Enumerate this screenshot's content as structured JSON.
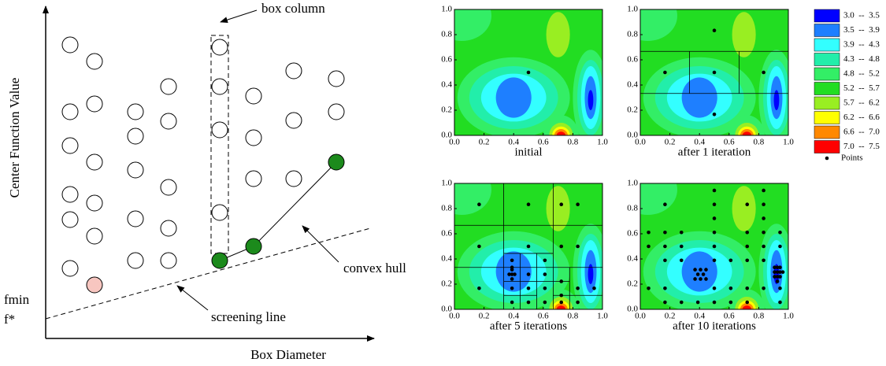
{
  "diagram": {
    "y_axis_label": "Center Function Value",
    "x_axis_label": "Box Diameter",
    "box_column": "box column",
    "convex_hull": "convex hull",
    "screening_line": "screening line",
    "fmin": "fmin",
    "fstar": "f*"
  },
  "legend": {
    "entries": [
      {
        "label": "3.0  --  3.5",
        "color": "#0000ff"
      },
      {
        "label": "3.5  --  3.9",
        "color": "#1e7fff"
      },
      {
        "label": "3.9  --  4.3",
        "color": "#33ffff"
      },
      {
        "label": "4.3  --  4.8",
        "color": "#22eeaa"
      },
      {
        "label": "4.8  --  5.2",
        "color": "#33ee66"
      },
      {
        "label": "5.2  --  5.7",
        "color": "#22dd22"
      },
      {
        "label": "5.7  --  6.2",
        "color": "#99ee22"
      },
      {
        "label": "6.2  --  6.6",
        "color": "#ffff00"
      },
      {
        "label": "6.6  --  7.0",
        "color": "#ff8800"
      },
      {
        "label": "7.0  --  7.5",
        "color": "#ff0000"
      }
    ],
    "points_label": "Points"
  },
  "chart_data": [
    {
      "type": "scatter",
      "title": "initial",
      "xlim": [
        0,
        1
      ],
      "ylim": [
        0,
        1
      ],
      "xticks": [
        {
          "value": 0,
          "label": "0.0"
        },
        {
          "value": 0.2,
          "label": "0.2"
        },
        {
          "value": 0.4,
          "label": "0.4"
        },
        {
          "value": 0.6,
          "label": "0.6"
        },
        {
          "value": 0.8,
          "label": "0.8"
        },
        {
          "value": 1,
          "label": "1.0"
        }
      ],
      "yticks": [
        {
          "value": 0,
          "label": "0.0"
        },
        {
          "value": 0.2,
          "label": "0.2"
        },
        {
          "value": 0.4,
          "label": "0.4"
        },
        {
          "value": 0.6,
          "label": "0.6"
        },
        {
          "value": 0.8,
          "label": "0.8"
        },
        {
          "value": 1,
          "label": "1.0"
        }
      ],
      "x": [
        0.5
      ],
      "y": [
        0.5
      ],
      "boxes": []
    },
    {
      "type": "scatter",
      "title": "after 1 iteration",
      "xlim": [
        0,
        1
      ],
      "ylim": [
        0,
        1
      ],
      "xticks": [
        {
          "value": 0,
          "label": "0.0"
        },
        {
          "value": 0.2,
          "label": "0.2"
        },
        {
          "value": 0.4,
          "label": "0.4"
        },
        {
          "value": 0.6,
          "label": "0.6"
        },
        {
          "value": 0.8,
          "label": "0.8"
        },
        {
          "value": 1,
          "label": "1.0"
        }
      ],
      "yticks": [
        {
          "value": 0,
          "label": "0.0"
        },
        {
          "value": 0.2,
          "label": "0.2"
        },
        {
          "value": 0.4,
          "label": "0.4"
        },
        {
          "value": 0.6,
          "label": "0.6"
        },
        {
          "value": 0.8,
          "label": "0.8"
        },
        {
          "value": 1,
          "label": "1.0"
        }
      ],
      "x": [
        0.5,
        0.167,
        0.833,
        0.5,
        0.5
      ],
      "y": [
        0.5,
        0.5,
        0.5,
        0.833,
        0.167
      ],
      "boxes": [
        [
          0,
          0.333,
          1,
          0.333
        ],
        [
          0,
          0.667,
          1,
          0.667
        ],
        [
          0.333,
          0.333,
          0.333,
          0.667
        ],
        [
          0.667,
          0.333,
          0.667,
          0.667
        ]
      ]
    },
    {
      "type": "scatter",
      "title": "after 5 iterations",
      "xlim": [
        0,
        1
      ],
      "ylim": [
        0,
        1
      ],
      "xticks": [
        {
          "value": 0,
          "label": "0.0"
        },
        {
          "value": 0.2,
          "label": "0.2"
        },
        {
          "value": 0.4,
          "label": "0.4"
        },
        {
          "value": 0.6,
          "label": "0.6"
        },
        {
          "value": 0.8,
          "label": "0.8"
        },
        {
          "value": 1,
          "label": "1.0"
        }
      ],
      "yticks": [
        {
          "value": 0,
          "label": "0.0"
        },
        {
          "value": 0.2,
          "label": "0.2"
        },
        {
          "value": 0.4,
          "label": "0.4"
        },
        {
          "value": 0.6,
          "label": "0.6"
        },
        {
          "value": 0.8,
          "label": "0.8"
        },
        {
          "value": 1,
          "label": "1.0"
        }
      ],
      "x": [
        0.167,
        0.5,
        0.722,
        0.833,
        0.167,
        0.5,
        0.722,
        0.833,
        0.389,
        0.611,
        0.389,
        0.5,
        0.611,
        0.37,
        0.389,
        0.407,
        0.389,
        0.389,
        0.167,
        0.5,
        0.611,
        0.722,
        0.833,
        0.389,
        0.5,
        0.722,
        0.944,
        0.389,
        0.611,
        0.722,
        0.833
      ],
      "y": [
        0.833,
        0.833,
        0.833,
        0.833,
        0.5,
        0.5,
        0.5,
        0.5,
        0.389,
        0.389,
        0.333,
        0.278,
        0.278,
        0.278,
        0.278,
        0.278,
        0.241,
        0.315,
        0.167,
        0.167,
        0.167,
        0.222,
        0.167,
        0.167,
        0.056,
        0.111,
        0.167,
        0.056,
        0.056,
        0.056,
        0.056
      ],
      "boxes": [
        [
          0,
          0.333,
          1,
          0.333
        ],
        [
          0,
          0.667,
          1,
          0.667
        ],
        [
          0.333,
          0,
          0.333,
          1
        ],
        [
          0.667,
          0,
          0.667,
          1
        ],
        [
          0.333,
          0.444,
          0.667,
          0.444
        ],
        [
          0.333,
          0.222,
          0.667,
          0.222
        ],
        [
          0.444,
          0,
          0.444,
          0.444
        ],
        [
          0.556,
          0,
          0.556,
          0.444
        ],
        [
          0.333,
          0.111,
          0.556,
          0.111
        ],
        [
          0.778,
          0,
          0.778,
          0.333
        ],
        [
          0.667,
          0.111,
          1,
          0.111
        ],
        [
          0.667,
          0.222,
          0.778,
          0.222
        ]
      ]
    },
    {
      "type": "scatter",
      "title": "after 10 iterations",
      "xlim": [
        0,
        1
      ],
      "ylim": [
        0,
        1
      ],
      "xticks": [
        {
          "value": 0,
          "label": "0.0"
        },
        {
          "value": 0.2,
          "label": "0.2"
        },
        {
          "value": 0.4,
          "label": "0.4"
        },
        {
          "value": 0.6,
          "label": "0.6"
        },
        {
          "value": 0.8,
          "label": "0.8"
        },
        {
          "value": 1,
          "label": "1.0"
        }
      ],
      "yticks": [
        {
          "value": 0,
          "label": "0.0"
        },
        {
          "value": 0.2,
          "label": "0.2"
        },
        {
          "value": 0.4,
          "label": "0.4"
        },
        {
          "value": 0.6,
          "label": "0.6"
        },
        {
          "value": 0.8,
          "label": "0.8"
        },
        {
          "value": 1,
          "label": "1.0"
        }
      ],
      "x": [
        0.5,
        0.833,
        0.167,
        0.5,
        0.722,
        0.833,
        0.5,
        0.833,
        0.056,
        0.167,
        0.278,
        0.5,
        0.722,
        0.833,
        0.944,
        0.056,
        0.167,
        0.278,
        0.5,
        0.722,
        0.833,
        0.944,
        0.167,
        0.278,
        0.5,
        0.611,
        0.722,
        0.833,
        0.37,
        0.407,
        0.444,
        0.389,
        0.426,
        0.37,
        0.407,
        0.444,
        0.907,
        0.926,
        0.944,
        0.907,
        0.926,
        0.944,
        0.963,
        0.907,
        0.926,
        0.944,
        0.926,
        0.056,
        0.167,
        0.5,
        0.611,
        0.722,
        0.833,
        0.944,
        0.167,
        0.278,
        0.389,
        0.5,
        0.611,
        0.722,
        0.944
      ],
      "y": [
        0.944,
        0.944,
        0.833,
        0.833,
        0.833,
        0.833,
        0.722,
        0.722,
        0.611,
        0.611,
        0.611,
        0.611,
        0.611,
        0.611,
        0.611,
        0.5,
        0.5,
        0.5,
        0.5,
        0.5,
        0.5,
        0.5,
        0.389,
        0.389,
        0.389,
        0.389,
        0.389,
        0.389,
        0.315,
        0.315,
        0.315,
        0.278,
        0.278,
        0.241,
        0.241,
        0.241,
        0.333,
        0.333,
        0.333,
        0.296,
        0.296,
        0.296,
        0.296,
        0.259,
        0.259,
        0.259,
        0.222,
        0.167,
        0.167,
        0.167,
        0.167,
        0.167,
        0.167,
        0.167,
        0.056,
        0.056,
        0.056,
        0.056,
        0.056,
        0.056,
        0.056
      ],
      "boxes": []
    }
  ]
}
